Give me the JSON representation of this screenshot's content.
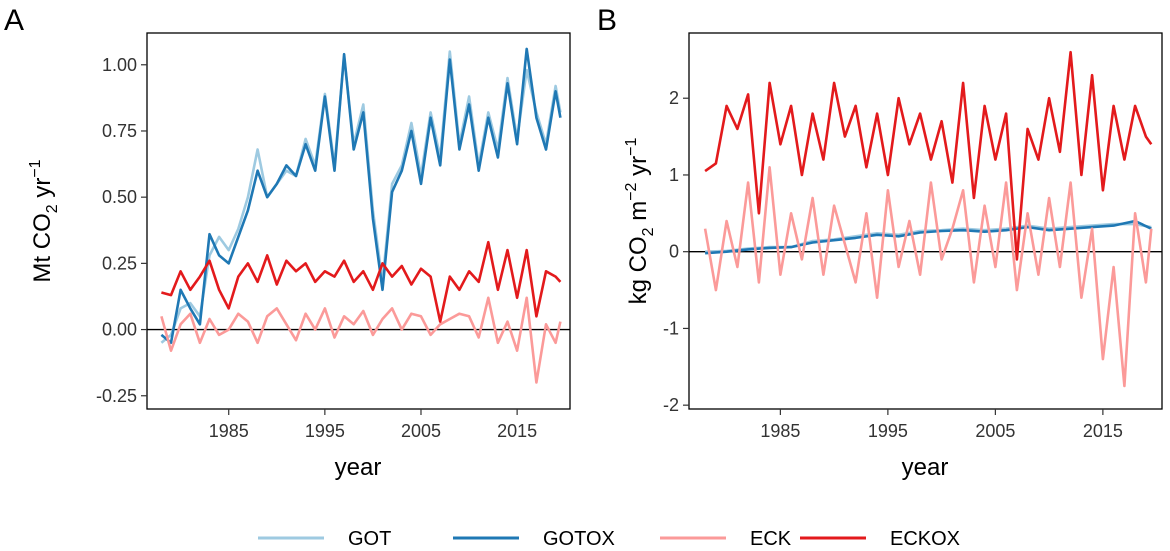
{
  "chart_data": [
    {
      "type": "line",
      "panel": "A",
      "xlabel": "year",
      "ylabel": {
        "pre": "Mt CO",
        "sub": "2",
        "mid": " yr",
        "sup": "−1"
      },
      "xlim": [
        1976.5,
        2020.5
      ],
      "ylim": [
        -0.3,
        1.12
      ],
      "xticks": [
        1985,
        1995,
        2005,
        2015
      ],
      "yticks": [
        -0.25,
        0.0,
        0.25,
        0.5,
        0.75,
        1.0
      ],
      "ytick_labels": [
        "-0.25",
        "0.00",
        "0.25",
        "0.50",
        "0.75",
        "1.00"
      ],
      "hline": 0,
      "series": [
        {
          "name": "GOT",
          "color": "#9ecae1",
          "x": [
            1978,
            1979,
            1980,
            1981,
            1982,
            1983,
            1984,
            1985,
            1986,
            1987,
            1988,
            1989,
            1990,
            1991,
            1992,
            1993,
            1994,
            1995,
            1996,
            1997,
            1998,
            1999,
            2000,
            2001,
            2002,
            2003,
            2004,
            2005,
            2006,
            2007,
            2008,
            2009,
            2010,
            2011,
            2012,
            2013,
            2014,
            2015,
            2016,
            2017,
            2018,
            2019,
            2019.5
          ],
          "y": [
            -0.05,
            -0.02,
            0.08,
            0.1,
            0.05,
            0.28,
            0.35,
            0.3,
            0.38,
            0.5,
            0.68,
            0.5,
            0.55,
            0.6,
            0.58,
            0.72,
            0.62,
            0.89,
            0.62,
            1.03,
            0.7,
            0.85,
            0.45,
            0.18,
            0.55,
            0.62,
            0.78,
            0.58,
            0.82,
            0.65,
            1.05,
            0.7,
            0.88,
            0.62,
            0.82,
            0.68,
            0.95,
            0.72,
            0.98,
            0.82,
            0.7,
            0.92,
            0.82
          ]
        },
        {
          "name": "GOTOX",
          "color": "#1f78b4",
          "x": [
            1978,
            1979,
            1980,
            1981,
            1982,
            1983,
            1984,
            1985,
            1986,
            1987,
            1988,
            1989,
            1990,
            1991,
            1992,
            1993,
            1994,
            1995,
            1996,
            1997,
            1998,
            1999,
            2000,
            2001,
            2002,
            2003,
            2004,
            2005,
            2006,
            2007,
            2008,
            2009,
            2010,
            2011,
            2012,
            2013,
            2014,
            2015,
            2016,
            2017,
            2018,
            2019,
            2019.5
          ],
          "y": [
            -0.02,
            -0.05,
            0.15,
            0.08,
            0.02,
            0.36,
            0.28,
            0.25,
            0.35,
            0.45,
            0.6,
            0.5,
            0.55,
            0.62,
            0.58,
            0.7,
            0.6,
            0.88,
            0.6,
            1.04,
            0.68,
            0.82,
            0.42,
            0.15,
            0.52,
            0.6,
            0.75,
            0.55,
            0.8,
            0.62,
            1.02,
            0.68,
            0.85,
            0.6,
            0.8,
            0.65,
            0.93,
            0.7,
            1.06,
            0.8,
            0.68,
            0.9,
            0.8
          ]
        },
        {
          "name": "ECK",
          "color": "#fb9a99",
          "x": [
            1978,
            1979,
            1980,
            1981,
            1982,
            1983,
            1984,
            1985,
            1986,
            1987,
            1988,
            1989,
            1990,
            1991,
            1992,
            1993,
            1994,
            1995,
            1996,
            1997,
            1998,
            1999,
            2000,
            2001,
            2002,
            2003,
            2004,
            2005,
            2006,
            2007,
            2008,
            2009,
            2010,
            2011,
            2012,
            2013,
            2014,
            2015,
            2016,
            2017,
            2018,
            2019,
            2019.5
          ],
          "y": [
            0.05,
            -0.08,
            0.02,
            0.06,
            -0.05,
            0.04,
            -0.02,
            0.0,
            0.06,
            0.03,
            -0.05,
            0.05,
            0.08,
            0.02,
            -0.04,
            0.06,
            0.0,
            0.08,
            -0.03,
            0.05,
            0.02,
            0.07,
            -0.02,
            0.04,
            0.08,
            0.0,
            0.06,
            0.05,
            -0.02,
            0.02,
            0.04,
            0.06,
            0.05,
            -0.03,
            0.12,
            -0.05,
            0.03,
            -0.08,
            0.12,
            -0.2,
            0.02,
            -0.05,
            0.03
          ]
        },
        {
          "name": "ECKOX",
          "color": "#e31a1c",
          "x": [
            1978,
            1979,
            1980,
            1981,
            1982,
            1983,
            1984,
            1985,
            1986,
            1987,
            1988,
            1989,
            1990,
            1991,
            1992,
            1993,
            1994,
            1995,
            1996,
            1997,
            1998,
            1999,
            2000,
            2001,
            2002,
            2003,
            2004,
            2005,
            2006,
            2007,
            2008,
            2009,
            2010,
            2011,
            2012,
            2013,
            2014,
            2015,
            2016,
            2017,
            2018,
            2019,
            2019.5
          ],
          "y": [
            0.14,
            0.13,
            0.22,
            0.15,
            0.2,
            0.26,
            0.15,
            0.08,
            0.2,
            0.25,
            0.18,
            0.28,
            0.17,
            0.26,
            0.22,
            0.25,
            0.18,
            0.22,
            0.2,
            0.26,
            0.18,
            0.22,
            0.15,
            0.25,
            0.2,
            0.24,
            0.17,
            0.23,
            0.2,
            0.03,
            0.2,
            0.15,
            0.22,
            0.18,
            0.33,
            0.15,
            0.3,
            0.12,
            0.3,
            0.05,
            0.22,
            0.2,
            0.18
          ]
        }
      ]
    },
    {
      "type": "line",
      "panel": "B",
      "xlabel": "year",
      "ylabel": {
        "pre": "kg CO",
        "sub": "2",
        "mid": " m",
        "sup": "−2",
        "post": " yr",
        "sup2": "−1"
      },
      "xlim": [
        1976.5,
        2020.5
      ],
      "ylim": [
        -2.05,
        2.85
      ],
      "xticks": [
        1985,
        1995,
        2005,
        2015
      ],
      "yticks": [
        -2,
        -1,
        0,
        1,
        2
      ],
      "ytick_labels": [
        "-2",
        "-1",
        "0",
        "1",
        "2"
      ],
      "hline": 0,
      "series": [
        {
          "name": "GOT",
          "color": "#9ecae1",
          "x": [
            1978,
            1980,
            1982,
            1984,
            1986,
            1988,
            1990,
            1992,
            1994,
            1996,
            1998,
            2000,
            2002,
            2004,
            2006,
            2008,
            2010,
            2012,
            2014,
            2016,
            2018,
            2019.5
          ],
          "y": [
            0.0,
            0.01,
            0.04,
            0.06,
            0.06,
            0.14,
            0.16,
            0.2,
            0.24,
            0.22,
            0.27,
            0.28,
            0.3,
            0.28,
            0.3,
            0.34,
            0.3,
            0.32,
            0.34,
            0.36,
            0.36,
            0.32
          ]
        },
        {
          "name": "GOTOX",
          "color": "#1f78b4",
          "x": [
            1978,
            1980,
            1982,
            1984,
            1986,
            1988,
            1990,
            1992,
            1994,
            1996,
            1998,
            2000,
            2002,
            2004,
            2006,
            2008,
            2010,
            2012,
            2014,
            2016,
            2018,
            2019.5
          ],
          "y": [
            -0.02,
            0.0,
            0.03,
            0.05,
            0.06,
            0.12,
            0.15,
            0.18,
            0.22,
            0.2,
            0.25,
            0.27,
            0.28,
            0.26,
            0.28,
            0.32,
            0.28,
            0.3,
            0.32,
            0.34,
            0.4,
            0.3
          ]
        },
        {
          "name": "ECK",
          "color": "#fb9a99",
          "x": [
            1978,
            1979,
            1980,
            1981,
            1982,
            1983,
            1984,
            1985,
            1986,
            1987,
            1988,
            1989,
            1990,
            1991,
            1992,
            1993,
            1994,
            1995,
            1996,
            1997,
            1998,
            1999,
            2000,
            2001,
            2002,
            2003,
            2004,
            2005,
            2006,
            2007,
            2008,
            2009,
            2010,
            2011,
            2012,
            2013,
            2014,
            2015,
            2016,
            2017,
            2018,
            2019,
            2019.5
          ],
          "y": [
            0.3,
            -0.5,
            0.4,
            -0.2,
            0.9,
            -0.4,
            1.1,
            -0.3,
            0.5,
            -0.1,
            0.7,
            -0.3,
            0.6,
            0.1,
            -0.4,
            0.5,
            -0.6,
            0.8,
            -0.2,
            0.4,
            -0.3,
            0.9,
            -0.1,
            0.3,
            0.8,
            -0.4,
            0.6,
            -0.2,
            0.9,
            -0.5,
            0.5,
            -0.3,
            0.7,
            -0.2,
            0.9,
            -0.6,
            0.3,
            -1.4,
            -0.2,
            -1.75,
            0.5,
            -0.4,
            0.3
          ]
        },
        {
          "name": "ECKOX",
          "color": "#e31a1c",
          "x": [
            1978,
            1979,
            1980,
            1981,
            1982,
            1983,
            1984,
            1985,
            1986,
            1987,
            1988,
            1989,
            1990,
            1991,
            1992,
            1993,
            1994,
            1995,
            1996,
            1997,
            1998,
            1999,
            2000,
            2001,
            2002,
            2003,
            2004,
            2005,
            2006,
            2007,
            2008,
            2009,
            2010,
            2011,
            2012,
            2013,
            2014,
            2015,
            2016,
            2017,
            2018,
            2019,
            2019.5
          ],
          "y": [
            1.05,
            1.15,
            1.9,
            1.6,
            2.05,
            0.5,
            2.2,
            1.4,
            1.9,
            1.0,
            1.8,
            1.2,
            2.2,
            1.5,
            1.9,
            1.1,
            1.8,
            1.0,
            2.0,
            1.4,
            1.8,
            1.2,
            1.7,
            0.9,
            2.2,
            0.7,
            1.9,
            1.2,
            1.8,
            -0.1,
            1.6,
            1.2,
            2.0,
            1.3,
            2.6,
            1.0,
            2.3,
            0.8,
            1.9,
            1.2,
            1.9,
            1.5,
            1.4
          ]
        }
      ]
    }
  ],
  "legend": [
    {
      "label": "GOT",
      "color": "#9ecae1"
    },
    {
      "label": "GOTOX",
      "color": "#1f78b4"
    },
    {
      "label": "ECK",
      "color": "#fb9a99"
    },
    {
      "label": "ECKOX",
      "color": "#e31a1c"
    }
  ]
}
